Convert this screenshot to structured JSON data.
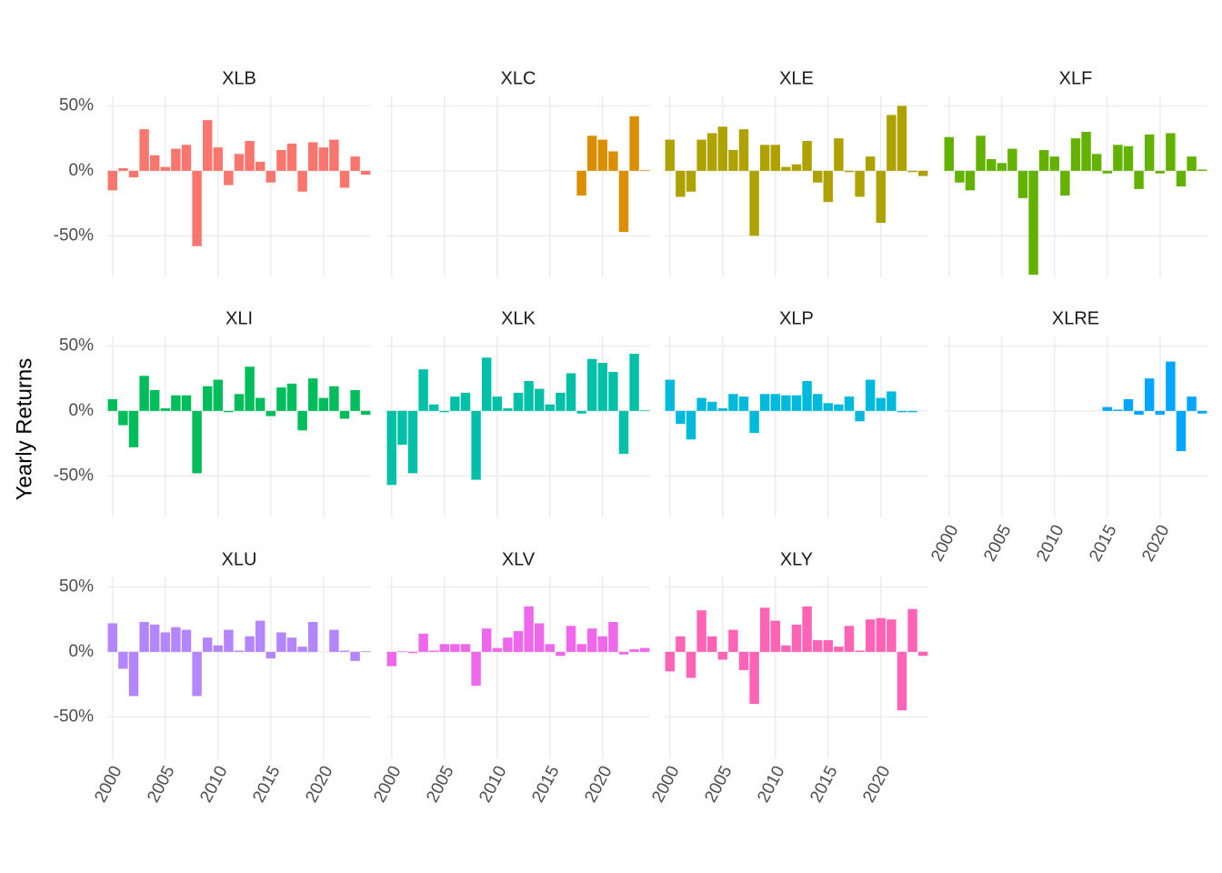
{
  "chart_data": {
    "type": "bar",
    "ylabel": "Yearly Returns",
    "x": [
      2000,
      2001,
      2002,
      2003,
      2004,
      2005,
      2006,
      2007,
      2008,
      2009,
      2010,
      2011,
      2012,
      2013,
      2014,
      2015,
      2016,
      2017,
      2018,
      2019,
      2020,
      2021,
      2022,
      2023,
      2024
    ],
    "xlim": [
      1999.5,
      2024.5
    ],
    "xticks": [
      2000,
      2005,
      2010,
      2015,
      2020
    ],
    "ylim": [
      -82,
      58
    ],
    "yticks": [
      {
        "value": -50,
        "label": "-50%"
      },
      {
        "value": 0,
        "label": "0%"
      },
      {
        "value": 50,
        "label": "50%"
      }
    ],
    "grid": true,
    "series": [
      {
        "name": "XLB",
        "color": "#F8766D",
        "values": [
          -15,
          2,
          -5,
          32,
          12,
          3,
          17,
          20,
          -58,
          39,
          18,
          -11,
          13,
          23,
          7,
          -9,
          16,
          21,
          -16,
          22,
          18,
          24,
          -13,
          11,
          -3
        ]
      },
      {
        "name": "XLC",
        "color": "#DB8E00",
        "values": [
          null,
          null,
          null,
          null,
          null,
          null,
          null,
          null,
          null,
          null,
          null,
          null,
          null,
          null,
          null,
          null,
          null,
          null,
          -19,
          27,
          24,
          15,
          -47,
          42,
          0.5
        ]
      },
      {
        "name": "XLE",
        "color": "#AEA200",
        "values": [
          24,
          -20,
          -16,
          24,
          29,
          34,
          16,
          32,
          -50,
          20,
          20,
          3,
          5,
          23,
          -9,
          -24,
          25,
          -1,
          -20,
          11,
          -40,
          43,
          50,
          -1,
          -4
        ]
      },
      {
        "name": "XLF",
        "color": "#64B200",
        "values": [
          26,
          -9,
          -15,
          27,
          9,
          6,
          17,
          -21,
          -80,
          16,
          11,
          -19,
          25,
          30,
          13,
          -2,
          20,
          19,
          -14,
          28,
          -2,
          29,
          -12,
          11,
          1
        ]
      },
      {
        "name": "XLI",
        "color": "#00BD5C",
        "values": [
          9,
          -11,
          -28,
          27,
          16,
          2,
          12,
          12,
          -48,
          19,
          24,
          -1,
          13,
          34,
          10,
          -4,
          18,
          21,
          -15,
          25,
          10,
          19,
          -6,
          16,
          -3
        ]
      },
      {
        "name": "XLK",
        "color": "#00C1A7",
        "values": [
          -57,
          -26,
          -48,
          32,
          5,
          -1,
          11,
          14,
          -53,
          41,
          11,
          2,
          14,
          23,
          17,
          5,
          14,
          29,
          -2,
          40,
          37,
          30,
          -33,
          44,
          0.5
        ]
      },
      {
        "name": "XLP",
        "color": "#00BADE",
        "values": [
          24,
          -10,
          -22,
          10,
          7,
          2,
          13,
          11,
          -17,
          13,
          13,
          12,
          12,
          23,
          13,
          6,
          5,
          11,
          -8,
          24,
          10,
          15,
          -1,
          -1,
          null
        ]
      },
      {
        "name": "XLRE",
        "color": "#00A6FF",
        "values": [
          null,
          null,
          null,
          null,
          null,
          null,
          null,
          null,
          null,
          null,
          null,
          null,
          null,
          null,
          null,
          3,
          1,
          9,
          -3,
          25,
          -3,
          38,
          -31,
          11,
          -2
        ]
      },
      {
        "name": "XLU",
        "color": "#B385FF",
        "values": [
          22,
          -13,
          -34,
          23,
          21,
          15,
          19,
          17,
          -34,
          11,
          5,
          17,
          1,
          12,
          24,
          -5,
          15,
          11,
          4,
          23,
          0,
          17,
          1,
          -7,
          0.5
        ]
      },
      {
        "name": "XLV",
        "color": "#EF67EB",
        "values": [
          -11,
          0.5,
          -1,
          14,
          1,
          6,
          6,
          6,
          -26,
          18,
          3,
          11,
          16,
          35,
          22,
          6,
          -3,
          20,
          6,
          18,
          12,
          23,
          -2,
          2,
          3
        ]
      },
      {
        "name": "XLY",
        "color": "#FF63B6",
        "values": [
          -15,
          12,
          -20,
          32,
          12,
          -6,
          17,
          -14,
          -40,
          34,
          24,
          5,
          21,
          35,
          9,
          9,
          4,
          20,
          1,
          25,
          26,
          25,
          -45,
          33,
          -3
        ]
      }
    ]
  }
}
